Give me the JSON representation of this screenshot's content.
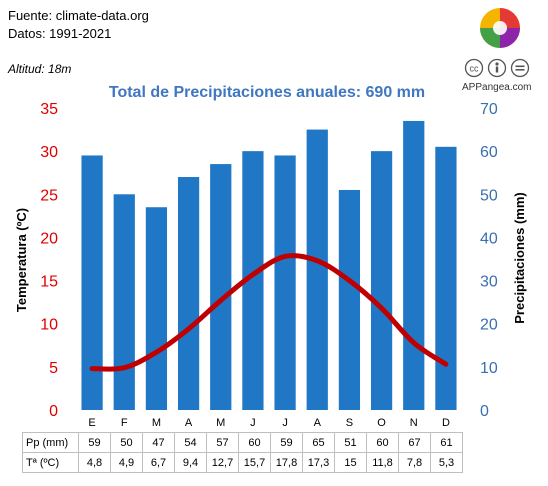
{
  "header": {
    "source": "Fuente: climate-data.org",
    "period": "Datos: 1991-2021",
    "altitude": "Altitud: 18m",
    "brand": "APPangea.com"
  },
  "colors": {
    "precip_bar": "#1f77c6",
    "temp_line": "#c00000",
    "left_axis": "#e00000",
    "right_axis": "#3a6fb0",
    "title": "#3f77c0"
  },
  "chart_data": {
    "type": "bar",
    "title": "Total de Precipitaciones anuales: 690 mm",
    "categories": [
      "E",
      "F",
      "M",
      "A",
      "M",
      "J",
      "J",
      "A",
      "S",
      "O",
      "N",
      "D"
    ],
    "ylabel_left": "Temperatura (ºC)",
    "ylabel_right": "Precipitaciones (mm)",
    "ylim_left": [
      0,
      35
    ],
    "ylim_right": [
      0,
      70
    ],
    "yticks_left": [
      "0",
      "5",
      "10",
      "15",
      "20",
      "25",
      "30",
      "35"
    ],
    "yticks_right": [
      "0",
      "10",
      "20",
      "30",
      "40",
      "50",
      "60",
      "70"
    ],
    "grid": false,
    "series": [
      {
        "name": "Pp (mm)",
        "type": "bar",
        "axis": "right",
        "values": [
          59,
          50,
          47,
          54,
          57,
          60,
          59,
          65,
          51,
          60,
          67,
          61
        ]
      },
      {
        "name": "Tª (ºC)",
        "type": "line",
        "axis": "left",
        "values": [
          4.8,
          4.9,
          6.7,
          9.4,
          12.7,
          15.7,
          17.8,
          17.3,
          15,
          11.8,
          7.8,
          5.3
        ]
      }
    ]
  },
  "table": {
    "rows": [
      {
        "label": "Pp (mm)",
        "values": [
          "59",
          "50",
          "47",
          "54",
          "57",
          "60",
          "59",
          "65",
          "51",
          "60",
          "67",
          "61"
        ]
      },
      {
        "label": "Tª (ºC)",
        "values": [
          "4,8",
          "4,9",
          "6,7",
          "9,4",
          "12,7",
          "15,7",
          "17,8",
          "17,3",
          "15",
          "11,8",
          "7,8",
          "5,3"
        ]
      }
    ]
  }
}
